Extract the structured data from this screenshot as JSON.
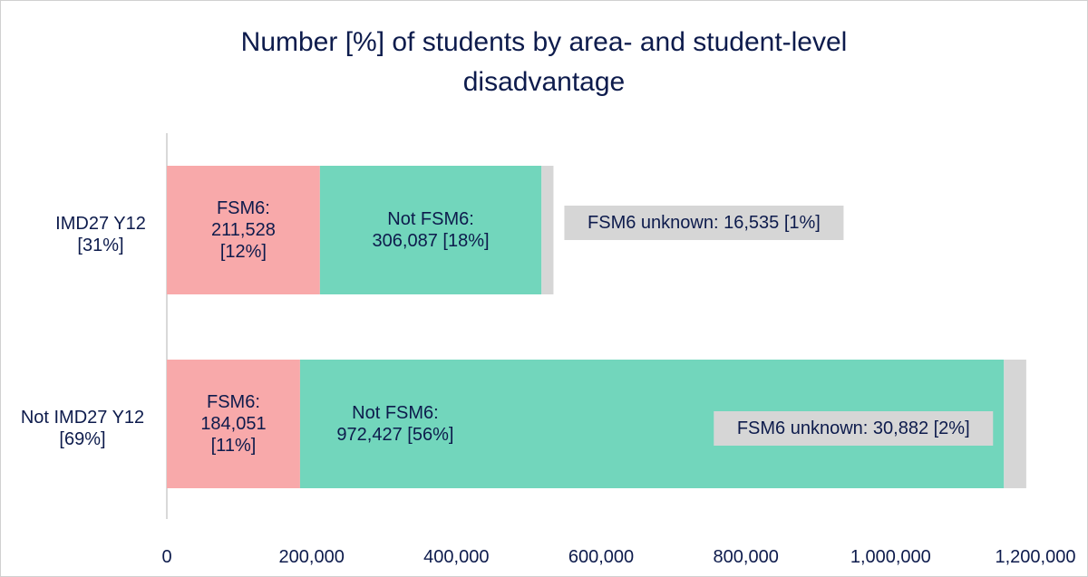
{
  "chart_data": {
    "type": "bar",
    "orientation": "horizontal",
    "stacked": true,
    "title_lines": [
      "Number [%] of students by area- and student-level",
      "disadvantage"
    ],
    "categories": [
      {
        "lines": [
          "IMD27 Y12",
          "[31%]"
        ]
      },
      {
        "lines": [
          "Not IMD27 Y12",
          "[69%]"
        ]
      }
    ],
    "series": [
      {
        "key": "fsm6",
        "color": "#f8a9aa",
        "values": [
          211528,
          184051
        ],
        "labels": [
          [
            "FSM6:",
            "211,528",
            "[12%]"
          ],
          [
            "FSM6:",
            "184,051",
            "[11%]"
          ]
        ]
      },
      {
        "key": "not_fsm6",
        "color": "#72d6bc",
        "values": [
          306087,
          972427
        ],
        "labels": [
          [
            "Not FSM6:",
            "306,087 [18%]"
          ],
          [
            "Not FSM6:",
            "972,427 [56%]"
          ]
        ]
      },
      {
        "key": "unknown",
        "color": "#d6d6d6",
        "values": [
          16535,
          30882
        ],
        "labels": [
          [
            "FSM6 unknown: 16,535 [1%]"
          ],
          [
            "FSM6 unknown: 30,882 [2%]"
          ]
        ]
      }
    ],
    "xlim": [
      0,
      1200000
    ],
    "x_ticks": [
      0,
      200000,
      400000,
      600000,
      800000,
      1000000,
      1200000
    ],
    "x_tick_labels": [
      "0",
      "200,000",
      "400,000",
      "600,000",
      "800,000",
      "1,000,000",
      "1,200,000"
    ],
    "grid": false,
    "legend": "none"
  }
}
